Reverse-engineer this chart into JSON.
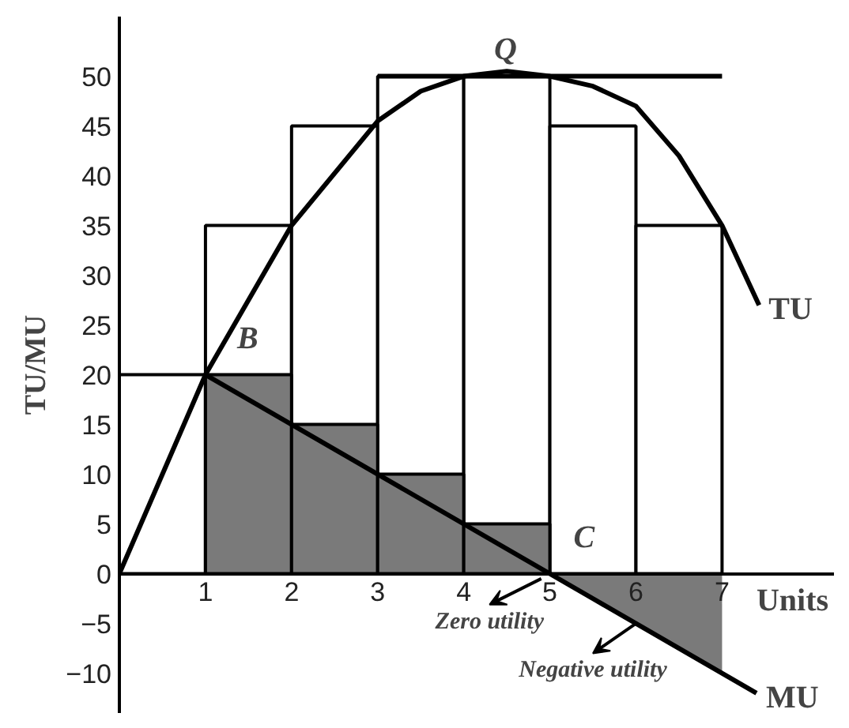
{
  "chart_data": {
    "type": "bar",
    "xlabel": "Units",
    "ylabel": "TU/MU",
    "xlim": [
      0,
      8.3
    ],
    "ylim": [
      -14,
      56
    ],
    "xticks": [
      1,
      2,
      3,
      4,
      5,
      6,
      7
    ],
    "yticks": [
      -10,
      -5,
      0,
      5,
      10,
      15,
      20,
      25,
      30,
      35,
      40,
      45,
      50
    ],
    "grid": false,
    "series": [
      {
        "color": "#ffffff",
        "x": [
          0.5,
          1.5,
          2.5,
          3.5,
          4.5,
          5.5,
          6.5
        ],
        "values": [
          20,
          35,
          45,
          50,
          50,
          45,
          35
        ]
      },
      {
        "color": "#7a7a7a",
        "x": [
          1.5,
          2.5,
          3.5,
          4.5
        ],
        "values": [
          20,
          15,
          10,
          5
        ]
      },
      {
        "type": "area",
        "color": "#7a7a7a",
        "x": [
          5,
          6,
          7
        ],
        "values": [
          0,
          -5,
          -10
        ]
      },
      {
        "type": "line",
        "color": "#000000",
        "x": [
          3,
          7
        ],
        "values": [
          50,
          50
        ]
      },
      {
        "type": "line",
        "name": "TU",
        "color": "#000000",
        "x": [
          0,
          1,
          2,
          3,
          3.5,
          4,
          4.5,
          5,
          5.5,
          6,
          6.5,
          7,
          7.43
        ],
        "values": [
          0,
          20,
          35,
          45.5,
          48.5,
          50,
          50.5,
          50,
          49,
          47,
          42,
          35,
          27
        ]
      },
      {
        "type": "line",
        "name": "MU",
        "color": "#000000",
        "x": [
          1,
          7.4
        ],
        "values": [
          20,
          -12
        ]
      }
    ],
    "annotations": [
      {
        "text": "Q",
        "x": 4.5,
        "y": 50
      },
      {
        "text": "B",
        "x": 1,
        "y": 20
      },
      {
        "text": "C",
        "x": 5,
        "y": 0
      },
      {
        "text": "Zero utility",
        "x": 4.9,
        "y": -0.5
      },
      {
        "text": "Negative utility",
        "x": 6,
        "y": -5
      }
    ]
  }
}
